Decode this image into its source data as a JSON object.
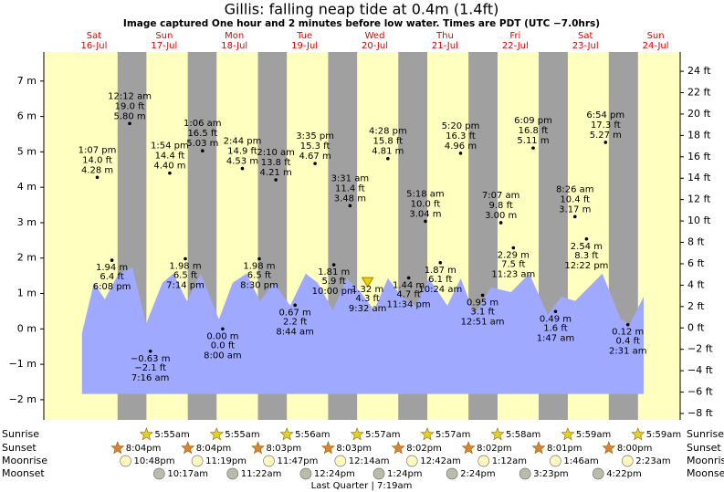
{
  "chart_data": {
    "type": "tide",
    "title": "Gillis: falling  neap tide at 0.4m (1.4ft)",
    "subtitle": "Image captured One hour and 2 minutes before low water. Times are PDT (UTC −7.0hrs)",
    "footer": "Last Quarter | 7:19am",
    "xlim": [
      -5.15,
      212.4
    ],
    "ylim": [
      -2.57,
      7.82
    ],
    "yticks": [
      {
        "value": -2,
        "label": "−2 m"
      },
      {
        "value": -1,
        "label": "−1 m"
      },
      {
        "value": 0,
        "label": "0 m"
      },
      {
        "value": 1,
        "label": "1 m"
      },
      {
        "value": 2,
        "label": "2 m"
      },
      {
        "value": 3,
        "label": "3 m"
      },
      {
        "value": 4,
        "label": "4 m"
      },
      {
        "value": 5,
        "label": "5 m"
      },
      {
        "value": 6,
        "label": "6 m"
      },
      {
        "value": 7,
        "label": "7 m"
      }
    ],
    "y2lim": [
      -8.6,
      25.8
    ],
    "y2ticks": [
      {
        "value": -8,
        "label": "−8 ft"
      },
      {
        "value": -6,
        "label": "−6 ft"
      },
      {
        "value": -4,
        "label": "−4 ft"
      },
      {
        "value": -2,
        "label": "−2 ft"
      },
      {
        "value": 0,
        "label": "0 ft"
      },
      {
        "value": 2,
        "label": "2 ft"
      },
      {
        "value": 4,
        "label": "4 ft"
      },
      {
        "value": 6,
        "label": "6 ft"
      },
      {
        "value": 8,
        "label": "8 ft"
      },
      {
        "value": 10,
        "label": "10 ft"
      },
      {
        "value": 12,
        "label": "12 ft"
      },
      {
        "value": 14,
        "label": "14 ft"
      },
      {
        "value": 16,
        "label": "16 ft"
      },
      {
        "value": 18,
        "label": "18 ft"
      },
      {
        "value": 20,
        "label": "20 ft"
      },
      {
        "value": 22,
        "label": "22 ft"
      },
      {
        "value": 24,
        "label": "24 ft"
      }
    ],
    "days": [
      {
        "day": "Sat",
        "date": "16-Jul",
        "x": 12
      },
      {
        "day": "Sun",
        "date": "17-Jul",
        "x": 36
      },
      {
        "day": "Mon",
        "date": "18-Jul",
        "x": 60
      },
      {
        "day": "Tue",
        "date": "19-Jul",
        "x": 84
      },
      {
        "day": "Wed",
        "date": "20-Jul",
        "x": 108
      },
      {
        "day": "Thu",
        "date": "21-Jul",
        "x": 132
      },
      {
        "day": "Fri",
        "date": "22-Jul",
        "x": 156
      },
      {
        "day": "Sat",
        "date": "23-Jul",
        "x": 180
      },
      {
        "day": "Sun",
        "date": "24-Jul",
        "x": 204
      }
    ],
    "day_color": "#e00000",
    "night_color": "#a0a0a0",
    "day_fill": "#ffffc0",
    "tide_color": "#9fa9ff",
    "tide": {
      "baseline": -1.84,
      "x": [
        7.9,
        12.0,
        15.7,
        20.4,
        25.1,
        29.8,
        35.4,
        39.1,
        43.8,
        48.5,
        54.7,
        59.4,
        64.1,
        68.8,
        73.5,
        79.1,
        84.4,
        88.5,
        93.7,
        98.4,
        103.1,
        107.8,
        112.5,
        117.2,
        121.9,
        126.5,
        132.8,
        137.4,
        142.1,
        147.7,
        154.6,
        160.8,
        167.1,
        171.8,
        176.5,
        185.8,
        192.1,
        195.2,
        199.9
      ],
      "values": [
        -0.12,
        1.3,
        0.84,
        1.56,
        1.74,
        0.14,
        1.3,
        1.56,
        0.79,
        1.56,
        0.27,
        1.3,
        1.56,
        0.79,
        1.3,
        0.66,
        1.56,
        1.3,
        0.53,
        1.43,
        1.04,
        0.53,
        1.43,
        0.91,
        0.66,
        1.43,
        0.66,
        1.43,
        0.4,
        1.17,
        1.04,
        1.56,
        0.4,
        0.91,
        0.79,
        1.56,
        0.27,
        0.14,
        0.91
      ]
    },
    "extremes": [
      {
        "time": "1:07 pm",
        "ft": "14.0 ft",
        "label": "4.28 m",
        "x": 13.12,
        "value": 4.28
      },
      {
        "time": "6:08 pm",
        "ft": "6.4 ft",
        "label": "1.94 m",
        "x": 18.13,
        "value": 1.94
      },
      {
        "time": "12:12 am",
        "ft": "19.0 ft",
        "label": "5.80 m",
        "x": 24.2,
        "value": 5.8
      },
      {
        "time": "7:16 am",
        "ft": "−2.1 ft",
        "label": "−0.63 m",
        "x": 31.27,
        "value": -0.63
      },
      {
        "time": "1:54 pm",
        "ft": "14.4 ft",
        "label": "4.40 m",
        "x": 37.9,
        "value": 4.4
      },
      {
        "time": "7:14 pm",
        "ft": "6.5 ft",
        "label": "1.98 m",
        "x": 43.23,
        "value": 1.98
      },
      {
        "time": "1:06 am",
        "ft": "16.5 ft",
        "label": "5.03 m",
        "x": 49.1,
        "value": 5.03
      },
      {
        "time": "8:00 am",
        "ft": "0.0 ft",
        "label": "0.00 m",
        "x": 56.0,
        "value": 0.0
      },
      {
        "time": "2:44 pm",
        "ft": "14.9 ft",
        "label": "4.53 m",
        "x": 62.73,
        "value": 4.53
      },
      {
        "time": "8:30 pm",
        "ft": "6.5 ft",
        "label": "1.98 m",
        "x": 68.5,
        "value": 1.98
      },
      {
        "time": "2:10 am",
        "ft": "13.8 ft",
        "label": "4.21 m",
        "x": 74.17,
        "value": 4.21
      },
      {
        "time": "8:44 am",
        "ft": "2.2 ft",
        "label": "0.67 m",
        "x": 80.73,
        "value": 0.67
      },
      {
        "time": "3:35 pm",
        "ft": "15.3 ft",
        "label": "4.67 m",
        "x": 87.58,
        "value": 4.67
      },
      {
        "time": "10:00 pm",
        "ft": "5.9 ft",
        "label": "1.81 m",
        "x": 94.0,
        "value": 1.81
      },
      {
        "time": "3:31 am",
        "ft": "11.4 ft",
        "label": "3.48 m",
        "x": 99.52,
        "value": 3.48
      },
      {
        "time": "9:32 am",
        "ft": "4.3 ft",
        "label": "1.32 m",
        "x": 105.53,
        "value": 1.32,
        "current": true
      },
      {
        "time": "4:28 pm",
        "ft": "15.8 ft",
        "label": "4.81 m",
        "x": 112.47,
        "value": 4.81
      },
      {
        "time": "11:34 pm",
        "ft": "4.7 ft",
        "label": "1.44 m",
        "x": 119.57,
        "value": 1.44
      },
      {
        "time": "5:18 am",
        "ft": "10.0 ft",
        "label": "3.04 m",
        "x": 125.3,
        "value": 3.04
      },
      {
        "time": "10:24 am",
        "ft": "6.1 ft",
        "label": "1.87 m",
        "x": 130.4,
        "value": 1.87
      },
      {
        "time": "5:20 pm",
        "ft": "16.3 ft",
        "label": "4.96 m",
        "x": 137.33,
        "value": 4.96
      },
      {
        "time": "12:51 am",
        "ft": "3.1 ft",
        "label": "0.95 m",
        "x": 144.85,
        "value": 0.95
      },
      {
        "time": "7:07 am",
        "ft": "9.8 ft",
        "label": "3.00 m",
        "x": 151.12,
        "value": 3.0
      },
      {
        "time": "11:23 am",
        "ft": "7.5 ft",
        "label": "2.29 m",
        "x": 155.38,
        "value": 2.29
      },
      {
        "time": "6:09 pm",
        "ft": "16.8 ft",
        "label": "5.11 m",
        "x": 162.15,
        "value": 5.11
      },
      {
        "time": "1:47 am",
        "ft": "1.6 ft",
        "label": "0.49 m",
        "x": 169.78,
        "value": 0.49
      },
      {
        "time": "8:26 am",
        "ft": "10.4 ft",
        "label": "3.17 m",
        "x": 176.43,
        "value": 3.17
      },
      {
        "time": "12:22 pm",
        "ft": "8.3 ft",
        "label": "2.54 m",
        "x": 180.37,
        "value": 2.54
      },
      {
        "time": "6:54 pm",
        "ft": "17.3 ft",
        "label": "5.27 m",
        "x": 186.9,
        "value": 5.27
      },
      {
        "time": "2:31 am",
        "ft": "0.4 ft",
        "label": "0.12 m",
        "x": 194.52,
        "value": 0.12
      }
    ],
    "rows": [
      {
        "name": "Sunrise",
        "icon": "sunrise",
        "events": [
          {
            "x": 29.92,
            "label": "5:55am"
          },
          {
            "x": 53.92,
            "label": "5:55am"
          },
          {
            "x": 77.93,
            "label": "5:56am"
          },
          {
            "x": 101.95,
            "label": "5:57am"
          },
          {
            "x": 125.95,
            "label": "5:57am"
          },
          {
            "x": 149.97,
            "label": "5:58am"
          },
          {
            "x": 173.98,
            "label": "5:59am"
          },
          {
            "x": 197.98,
            "label": "5:59am"
          }
        ]
      },
      {
        "name": "Sunset",
        "icon": "sunset",
        "events": [
          {
            "x": 20.07,
            "label": "8:04pm"
          },
          {
            "x": 44.07,
            "label": "8:04pm"
          },
          {
            "x": 68.05,
            "label": "8:03pm"
          },
          {
            "x": 92.05,
            "label": "8:03pm"
          },
          {
            "x": 116.03,
            "label": "8:02pm"
          },
          {
            "x": 140.03,
            "label": "8:02pm"
          },
          {
            "x": 164.02,
            "label": "8:01pm"
          },
          {
            "x": 188.0,
            "label": "8:00pm"
          }
        ]
      },
      {
        "name": "Moonrise",
        "icon": "moonrise",
        "events": [
          {
            "x": 22.8,
            "label": "10:48pm"
          },
          {
            "x": 47.32,
            "label": "11:19pm"
          },
          {
            "x": 71.78,
            "label": "11:47pm"
          },
          {
            "x": 96.23,
            "label": "12:14am"
          },
          {
            "x": 120.7,
            "label": "12:42am"
          },
          {
            "x": 145.2,
            "label": "1:12am"
          },
          {
            "x": 169.77,
            "label": "1:46am"
          },
          {
            "x": 194.38,
            "label": "2:23am"
          }
        ]
      },
      {
        "name": "Moonset",
        "icon": "moonset",
        "events": [
          {
            "x": 34.28,
            "label": "10:17am"
          },
          {
            "x": 59.37,
            "label": "11:22am"
          },
          {
            "x": 84.4,
            "label": "12:24pm"
          },
          {
            "x": 109.4,
            "label": "1:24pm"
          },
          {
            "x": 134.4,
            "label": "2:24pm"
          },
          {
            "x": 159.38,
            "label": "3:23pm"
          },
          {
            "x": 184.37,
            "label": "4:22pm"
          }
        ]
      }
    ]
  }
}
